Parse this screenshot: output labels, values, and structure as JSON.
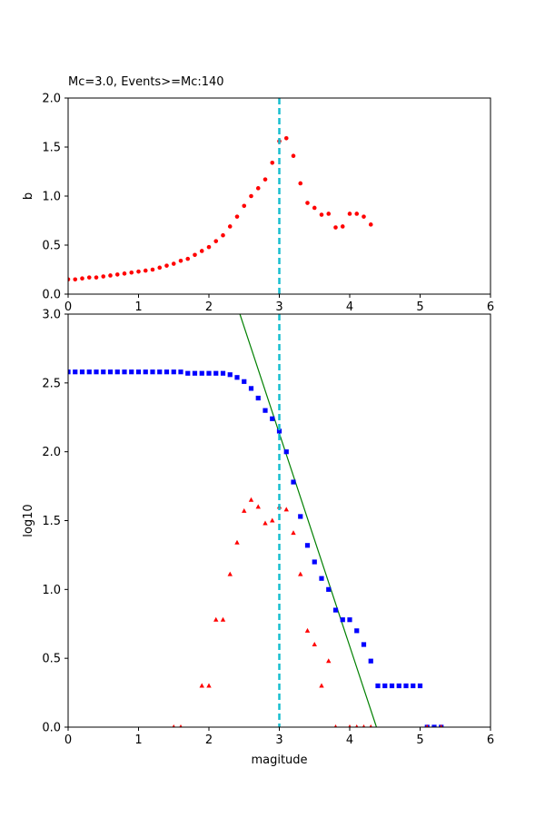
{
  "chart_data": [
    {
      "type": "scatter",
      "title": "Mc=3.0, Events>=Mc:140",
      "xlabel": "",
      "ylabel": "b",
      "xlim": [
        0,
        6
      ],
      "ylim": [
        0,
        2.0
      ],
      "xticks": [
        "0",
        "1",
        "2",
        "3",
        "4",
        "5",
        "6"
      ],
      "yticks": [
        "0.0",
        "0.5",
        "1.0",
        "1.5",
        "2.0"
      ],
      "grid": false,
      "vline": {
        "x": 3.0,
        "color": "#17becf",
        "style": "dashed"
      },
      "series": [
        {
          "marker": "circle",
          "color": "#ff0000",
          "x": [
            0.0,
            0.1,
            0.2,
            0.3,
            0.4,
            0.5,
            0.6,
            0.7,
            0.8,
            0.9,
            1.0,
            1.1,
            1.2,
            1.3,
            1.4,
            1.5,
            1.6,
            1.7,
            1.8,
            1.9,
            2.0,
            2.1,
            2.2,
            2.3,
            2.4,
            2.5,
            2.6,
            2.7,
            2.8,
            2.9,
            3.0,
            3.1,
            3.2,
            3.3,
            3.4,
            3.5,
            3.6,
            3.7,
            3.8,
            3.9,
            4.0,
            4.1,
            4.2,
            4.3
          ],
          "y": [
            0.15,
            0.15,
            0.16,
            0.17,
            0.17,
            0.18,
            0.19,
            0.2,
            0.21,
            0.22,
            0.23,
            0.24,
            0.25,
            0.27,
            0.29,
            0.31,
            0.34,
            0.36,
            0.4,
            0.44,
            0.48,
            0.54,
            0.6,
            0.69,
            0.79,
            0.9,
            1.0,
            1.08,
            1.17,
            1.34,
            1.56,
            1.59,
            1.41,
            1.13,
            0.93,
            0.88,
            0.81,
            0.82,
            0.68,
            0.69,
            0.82,
            0.82,
            0.79,
            0.71
          ]
        }
      ]
    },
    {
      "type": "scatter",
      "title": "",
      "xlabel": "magitude",
      "ylabel": "log10",
      "xlim": [
        0,
        6
      ],
      "ylim": [
        0,
        3.0
      ],
      "xticks": [
        "0",
        "1",
        "2",
        "3",
        "4",
        "5",
        "6"
      ],
      "yticks": [
        "0.0",
        "0.5",
        "1.0",
        "1.5",
        "2.0",
        "2.5",
        "3.0"
      ],
      "grid": false,
      "vline": {
        "x": 3.0,
        "color": "#17becf",
        "style": "dashed"
      },
      "fit_line": {
        "x": [
          2.44,
          4.38
        ],
        "y": [
          3.0,
          0.0
        ],
        "color": "#008000"
      },
      "series": [
        {
          "marker": "square",
          "color": "#0000ff",
          "x": [
            0.0,
            0.1,
            0.2,
            0.3,
            0.4,
            0.5,
            0.6,
            0.7,
            0.8,
            0.9,
            1.0,
            1.1,
            1.2,
            1.3,
            1.4,
            1.5,
            1.6,
            1.7,
            1.8,
            1.9,
            2.0,
            2.1,
            2.2,
            2.3,
            2.4,
            2.5,
            2.6,
            2.7,
            2.8,
            2.9,
            3.0,
            3.1,
            3.2,
            3.3,
            3.4,
            3.5,
            3.6,
            3.7,
            3.8,
            3.9,
            4.0,
            4.1,
            4.2,
            4.3,
            4.4,
            4.5,
            4.6,
            4.7,
            4.8,
            4.9,
            5.0,
            5.1,
            5.2,
            5.3
          ],
          "y": [
            2.58,
            2.58,
            2.58,
            2.58,
            2.58,
            2.58,
            2.58,
            2.58,
            2.58,
            2.58,
            2.58,
            2.58,
            2.58,
            2.58,
            2.58,
            2.58,
            2.58,
            2.57,
            2.57,
            2.57,
            2.57,
            2.57,
            2.57,
            2.56,
            2.54,
            2.51,
            2.46,
            2.39,
            2.3,
            2.24,
            2.15,
            2.0,
            1.78,
            1.53,
            1.32,
            1.2,
            1.08,
            1.0,
            0.85,
            0.78,
            0.78,
            0.7,
            0.6,
            0.48,
            0.3,
            0.3,
            0.3,
            0.3,
            0.3,
            0.3,
            0.3,
            0.0,
            0.0,
            0.0
          ]
        },
        {
          "marker": "triangle",
          "color": "#ff0000",
          "x": [
            1.5,
            1.6,
            1.9,
            2.0,
            2.1,
            2.2,
            2.3,
            2.4,
            2.5,
            2.6,
            2.7,
            2.8,
            2.9,
            3.0,
            3.1,
            3.2,
            3.3,
            3.4,
            3.5,
            3.6,
            3.7,
            3.8,
            4.0,
            4.1,
            4.2,
            4.3,
            5.1,
            5.3
          ],
          "y": [
            0.0,
            0.0,
            0.3,
            0.3,
            0.78,
            0.78,
            1.11,
            1.34,
            1.57,
            1.65,
            1.6,
            1.48,
            1.5,
            1.6,
            1.58,
            1.41,
            1.11,
            0.7,
            0.6,
            0.3,
            0.48,
            0.0,
            0.0,
            0.0,
            0.0,
            0.0,
            0.0,
            0.0
          ]
        }
      ]
    }
  ]
}
